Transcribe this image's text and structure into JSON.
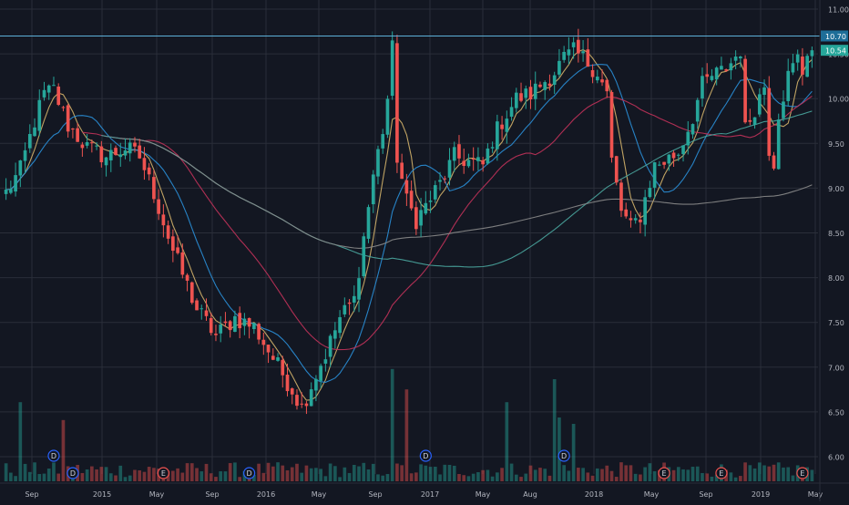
{
  "chart_data": {
    "type": "candlestick",
    "title": "",
    "ylim": [
      5.9,
      11.1
    ],
    "y_ticks": [
      "11.00",
      "10.50",
      "10.00",
      "9.50",
      "9.00",
      "8.50",
      "8.00",
      "7.50",
      "7.00",
      "6.50",
      "6.00"
    ],
    "x_ticks": [
      "Sep",
      "2015",
      "May",
      "Sep",
      "2016",
      "May",
      "Sep",
      "2017",
      "May",
      "Aug",
      "2018",
      "May",
      "Sep",
      "2019",
      "May"
    ],
    "horizontal_line": {
      "value": 10.7,
      "label": "10.70"
    },
    "last_price": {
      "value": 10.54,
      "label": "10.54"
    },
    "price_anchors": [
      [
        0,
        8.95
      ],
      [
        3,
        9.2
      ],
      [
        6,
        9.75
      ],
      [
        8,
        10.05
      ],
      [
        10,
        10.1
      ],
      [
        13,
        9.7
      ],
      [
        17,
        9.45
      ],
      [
        21,
        9.35
      ],
      [
        25,
        9.45
      ],
      [
        28,
        9.35
      ],
      [
        31,
        8.95
      ],
      [
        35,
        8.3
      ],
      [
        40,
        7.65
      ],
      [
        44,
        7.35
      ],
      [
        48,
        7.55
      ],
      [
        52,
        7.45
      ],
      [
        56,
        7.1
      ],
      [
        60,
        6.75
      ],
      [
        62,
        6.55
      ],
      [
        64,
        6.8
      ],
      [
        67,
        7.15
      ],
      [
        70,
        7.55
      ],
      [
        73,
        7.75
      ],
      [
        75,
        8.45
      ],
      [
        77,
        9.15
      ],
      [
        79,
        9.65
      ],
      [
        80,
        10.0
      ],
      [
        81,
        10.55
      ],
      [
        82,
        9.35
      ],
      [
        84,
        8.85
      ],
      [
        86,
        8.65
      ],
      [
        88,
        8.8
      ],
      [
        91,
        9.05
      ],
      [
        94,
        9.35
      ],
      [
        97,
        9.3
      ],
      [
        100,
        9.25
      ],
      [
        102,
        9.55
      ],
      [
        104,
        9.75
      ],
      [
        107,
        10.0
      ],
      [
        110,
        10.05
      ],
      [
        112,
        10.15
      ],
      [
        115,
        10.3
      ],
      [
        117,
        10.45
      ],
      [
        119,
        10.52
      ],
      [
        121,
        10.45
      ],
      [
        124,
        10.3
      ],
      [
        126,
        10.05
      ],
      [
        127,
        9.3
      ],
      [
        129,
        8.75
      ],
      [
        131,
        8.55
      ],
      [
        133,
        8.7
      ],
      [
        136,
        9.25
      ],
      [
        138,
        9.3
      ],
      [
        141,
        9.4
      ],
      [
        144,
        9.8
      ],
      [
        146,
        10.15
      ],
      [
        148,
        10.25
      ],
      [
        150,
        10.3
      ],
      [
        152,
        10.4
      ],
      [
        154,
        10.55
      ],
      [
        155,
        9.65
      ],
      [
        157,
        9.9
      ],
      [
        159,
        10.15
      ],
      [
        160,
        9.45
      ],
      [
        161,
        9.3
      ],
      [
        162,
        9.85
      ],
      [
        164,
        10.25
      ],
      [
        166,
        10.45
      ],
      [
        167,
        10.3
      ],
      [
        168,
        10.54
      ]
    ],
    "volume_spikes": [
      [
        3,
        0.62
      ],
      [
        12,
        0.48
      ],
      [
        81,
        0.88
      ],
      [
        84,
        0.72
      ],
      [
        105,
        0.62
      ],
      [
        115,
        0.8
      ],
      [
        116,
        0.5
      ],
      [
        119,
        0.45
      ]
    ],
    "moving_averages": [
      {
        "color": "#d4b26a",
        "window": 5
      },
      {
        "color": "#2a8fd8",
        "window": 12
      },
      {
        "color": "#c2325a",
        "window": 30
      },
      {
        "color": "#4aa69e",
        "window": 70
      },
      {
        "color": "#8a8a8a",
        "window": 130
      }
    ],
    "events": [
      {
        "x": 10,
        "row": 2,
        "label": "D",
        "kind": "div"
      },
      {
        "x": 14,
        "row": 1,
        "label": "D",
        "kind": "div"
      },
      {
        "x": 33,
        "row": 1,
        "label": "E",
        "kind": "earn"
      },
      {
        "x": 51,
        "row": 1,
        "label": "D",
        "kind": "div"
      },
      {
        "x": 88,
        "row": 2,
        "label": "D",
        "kind": "div"
      },
      {
        "x": 117,
        "row": 2,
        "label": "D",
        "kind": "div"
      },
      {
        "x": 138,
        "row": 1,
        "label": "E",
        "kind": "earn"
      },
      {
        "x": 150,
        "row": 1,
        "label": "E",
        "kind": "earn"
      },
      {
        "x": 167,
        "row": 1,
        "label": "E",
        "kind": "earn"
      }
    ],
    "colors": {
      "background": "#131722",
      "grid": "#2a2e39",
      "axis_text": "#b2b5be",
      "up": "#26a69a",
      "down": "#ef5350",
      "hline": "#5db0d8",
      "last_price_bg": "#26a69a",
      "div_marker": "#2962ff",
      "earn_marker": "#ef5350"
    }
  }
}
